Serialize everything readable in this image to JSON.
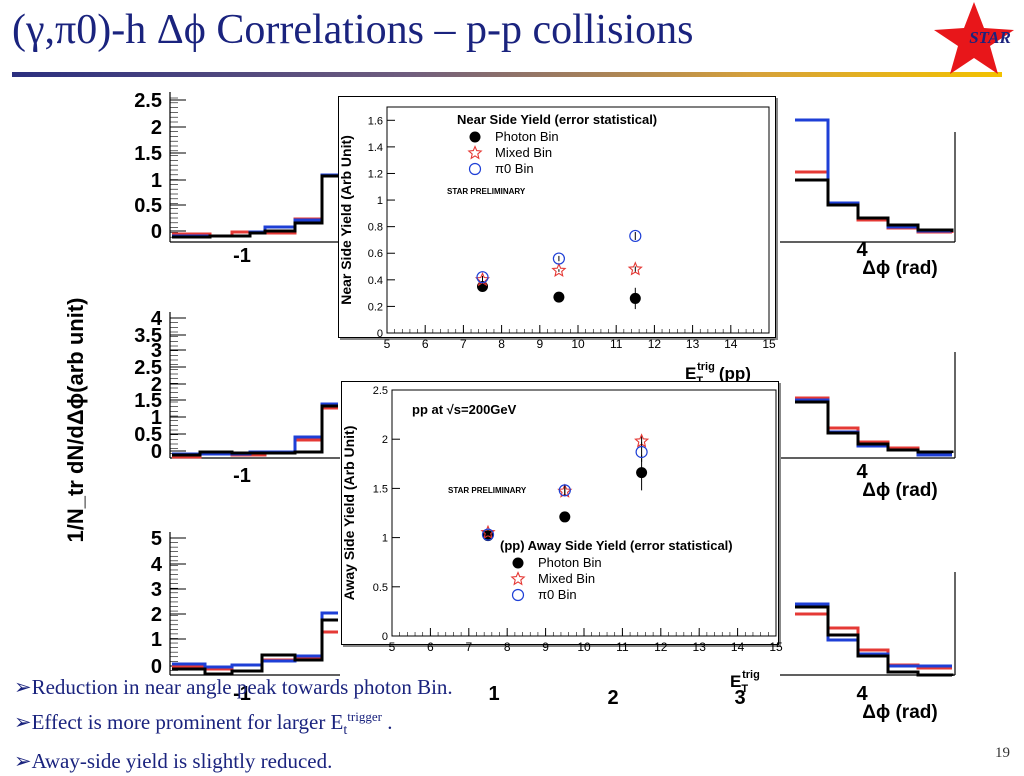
{
  "slide": {
    "title": "(γ,π0)-h Δϕ Correlations – p-p collisions",
    "logo_text": "STAR",
    "page_number": "19",
    "bullets": [
      {
        "arrow": "➢",
        "text": "Reduction in near angle peak towards photon Bin."
      },
      {
        "arrow": "➢",
        "text": "Effect is more prominent for larger E",
        "sub": "t",
        "sup": "trigger",
        "tail": " ."
      },
      {
        "arrow": "➢",
        "text": "Away-side yield is slightly reduced."
      }
    ],
    "bg_ylabel": "1/N_tr dN/dΔϕ(arb unit)",
    "bg_xlabel": "Δϕ (rad)",
    "colors": {
      "title": "#1a237e",
      "photon": "#000000",
      "mixed": "#e53935",
      "pi0": "#1e3fd6"
    }
  },
  "bg_panels": [
    {
      "yticks": [
        "2.5",
        "2",
        "1.5",
        "1",
        "0.5",
        "0"
      ],
      "xticks_left": [
        "-1"
      ],
      "xticks_right": [
        "4"
      ],
      "xlabel": "Δϕ (rad)"
    },
    {
      "yticks": [
        "4",
        "3.5",
        "3",
        "2.5",
        "2",
        "1.5",
        "1",
        "0.5",
        "0"
      ],
      "xticks_left": [
        "-1"
      ],
      "xticks_right": [
        "4"
      ],
      "xlabel": "Δϕ (rad)"
    },
    {
      "yticks": [
        "5",
        "4",
        "3",
        "2",
        "1",
        "0"
      ],
      "xticks_left": [
        "-1"
      ],
      "xticks_bottom": [
        "1",
        "2",
        "3"
      ],
      "xticks_right": [
        "4"
      ],
      "xlabel": "Δϕ (rad)"
    }
  ],
  "chart_data": [
    {
      "type": "scatter",
      "title": "Near Side Yield (error statistical)",
      "annotation": "STAR PRELIMINARY",
      "xlabel": "E_T^trig (pp)",
      "ylabel": "Near Side Yield (Arb Unit)",
      "xlim": [
        5,
        15
      ],
      "ylim": [
        0,
        1.7
      ],
      "xticks": [
        5,
        6,
        7,
        8,
        9,
        10,
        11,
        12,
        13,
        14,
        15
      ],
      "yticks": [
        0,
        0.2,
        0.4,
        0.6,
        0.8,
        1,
        1.2,
        1.4,
        1.6
      ],
      "legend_position": "top-center",
      "series": [
        {
          "name": "Photon Bin",
          "marker": "filled-circle",
          "x": [
            7.5,
            9.5,
            11.5
          ],
          "y": [
            0.35,
            0.27,
            0.26
          ],
          "err": [
            0.02,
            0.02,
            0.08
          ]
        },
        {
          "name": "Mixed Bin",
          "marker": "open-star",
          "x": [
            7.5,
            9.5,
            11.5
          ],
          "y": [
            0.4,
            0.47,
            0.48
          ],
          "err": [
            0.01,
            0.01,
            0.02
          ]
        },
        {
          "name": "π0 Bin",
          "marker": "open-circle",
          "x": [
            7.5,
            9.5,
            11.5
          ],
          "y": [
            0.42,
            0.56,
            0.73
          ],
          "err": [
            0.01,
            0.02,
            0.03
          ]
        }
      ]
    },
    {
      "type": "scatter",
      "title": "(pp) Away Side Yield (error statistical)",
      "note": "pp at √s=200GeV",
      "annotation": "STAR PRELIMINARY",
      "xlabel": "E_T^trig",
      "ylabel": "Away Side Yield (Arb Unit)",
      "xlim": [
        5,
        15
      ],
      "ylim": [
        0,
        2.5
      ],
      "xticks": [
        5,
        6,
        7,
        8,
        9,
        10,
        11,
        12,
        13,
        14,
        15
      ],
      "yticks": [
        0,
        0.5,
        1,
        1.5,
        2,
        2.5
      ],
      "legend_position": "center-right",
      "series": [
        {
          "name": "Photon Bin",
          "marker": "filled-circle",
          "x": [
            7.5,
            9.5,
            11.5
          ],
          "y": [
            1.02,
            1.21,
            1.66
          ],
          "err": [
            0.02,
            0.03,
            0.18
          ]
        },
        {
          "name": "Mixed Bin",
          "marker": "open-star",
          "x": [
            7.5,
            9.5,
            11.5
          ],
          "y": [
            1.05,
            1.47,
            1.98
          ],
          "err": [
            0.01,
            0.04,
            0.06
          ]
        },
        {
          "name": "π0 Bin",
          "marker": "open-circle",
          "x": [
            7.5,
            9.5,
            11.5
          ],
          "y": [
            1.03,
            1.48,
            1.87
          ],
          "err": [
            0.01,
            0.05,
            0.1
          ]
        }
      ]
    }
  ]
}
